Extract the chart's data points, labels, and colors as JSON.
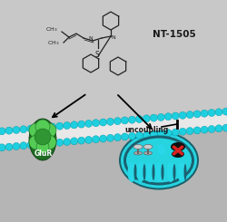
{
  "bg_color": "#c8c8c8",
  "bg_lower_color": "#b8b8b8",
  "bead_color": "#1ecfdf",
  "bead_edge": "#0099aa",
  "membrane_fill": "#e8e8e8",
  "mito_outer_dark": "#1a5f6a",
  "mito_teal_bright": "#26d4e0",
  "mito_teal_mid": "#1ab8c8",
  "mito_inner_dark": "#1a6070",
  "crista_teal": "#28d8e8",
  "glur_dark": "#1e6b22",
  "glur_mid": "#2e9632",
  "glur_light": "#55cc55",
  "text_dark": "#1a1a1a",
  "red_x": "#dd2222",
  "arrow_color": "#111111",
  "mol_color": "#222222",
  "nt_label": "NT-1505",
  "glur_label": "GluR",
  "uncoupling_label": "uncoupling"
}
